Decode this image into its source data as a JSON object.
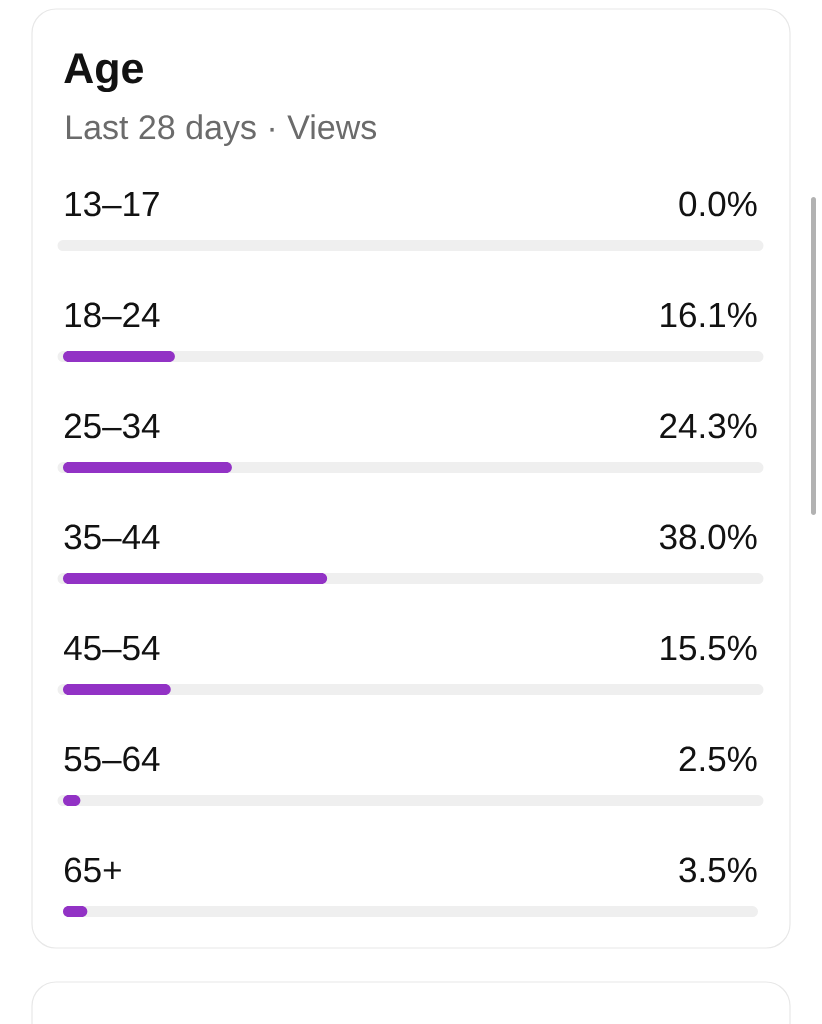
{
  "chart_data": {
    "type": "bar",
    "orientation": "horizontal",
    "title": "Age",
    "subtitle": "Last 28 days · Views",
    "categories": [
      "13–17",
      "18–24",
      "25–34",
      "35–44",
      "45–54",
      "55–64",
      "65+"
    ],
    "series": [
      {
        "color": "#9232c5",
        "values": [
          0.0,
          16.1,
          24.3,
          38.0,
          15.5,
          2.5,
          3.5
        ],
        "value_labels": [
          "0.0%",
          "16.1%",
          "24.3%",
          "38.0%",
          "15.5%",
          "2.5%",
          "3.5%"
        ]
      }
    ],
    "xlim": [
      0,
      100
    ],
    "grid": "y"
  }
}
